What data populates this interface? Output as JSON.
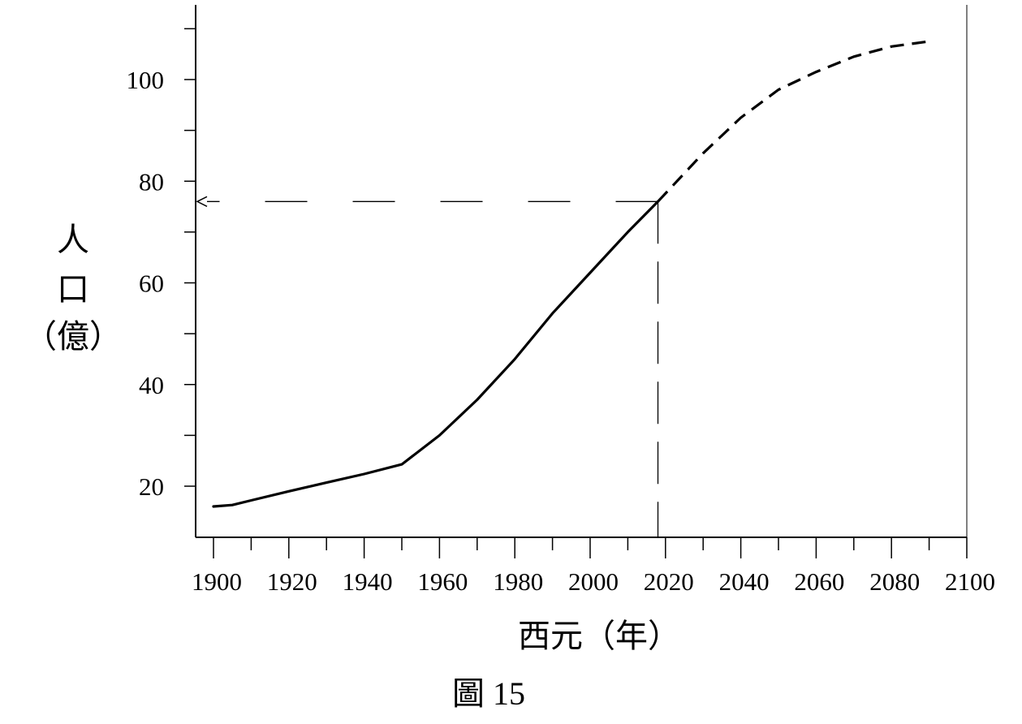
{
  "chart_data": {
    "type": "line",
    "caption": "圖 15",
    "xlabel": "西元（年）",
    "ylabel_lines": [
      "人",
      "口",
      "（億）"
    ],
    "xlim": [
      1895,
      2100
    ],
    "ylim": [
      10,
      115
    ],
    "x_ticks": [
      1900,
      1920,
      1940,
      1960,
      1980,
      2000,
      2020,
      2040,
      2060,
      2080,
      2100
    ],
    "x_tick_labels": [
      "1900",
      "1920",
      "1940",
      "1960",
      "1980",
      "2000",
      "2020",
      "2040",
      "2060",
      "2080",
      "2100"
    ],
    "x_minor_step": 10,
    "y_ticks": [
      20,
      40,
      60,
      80,
      100
    ],
    "y_tick_labels": [
      "20",
      "40",
      "60",
      "80",
      "100"
    ],
    "y_minor_step": 10,
    "grid": false,
    "series": [
      {
        "style": "solid",
        "x": [
          1900,
          1905,
          1910,
          1920,
          1930,
          1940,
          1950,
          1960,
          1970,
          1980,
          1990,
          2000,
          2010,
          2018
        ],
        "values": [
          16,
          16.3,
          17.2,
          19,
          20.7,
          22.4,
          24.3,
          30,
          37,
          45,
          54,
          62,
          70,
          76
        ]
      },
      {
        "style": "dashed",
        "x": [
          2018,
          2030,
          2040,
          2050,
          2060,
          2070,
          2080,
          2090
        ],
        "values": [
          76,
          85.5,
          92.5,
          98,
          101.5,
          104.5,
          106.5,
          107.5
        ]
      }
    ],
    "annotation": {
      "x": 2018,
      "y": 76,
      "style": "dashed reference lines with arrow to y-axis"
    }
  }
}
